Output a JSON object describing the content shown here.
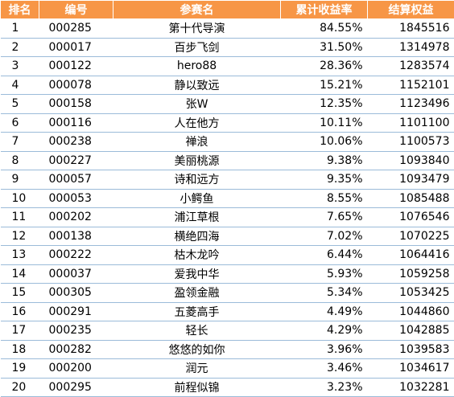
{
  "header": {
    "rank": "排名",
    "id": "编号",
    "name": "参赛名",
    "rate": "累计收益率",
    "equity": "结算权益"
  },
  "colors": {
    "header_bg": "#f79646",
    "header_text": "#ffffff",
    "row_border": "#9bbbd9"
  },
  "rows": [
    {
      "rank": "1",
      "id": "000285",
      "name": "第十代导演",
      "rate": "84.55%",
      "equity": "1845516"
    },
    {
      "rank": "2",
      "id": "000017",
      "name": "百步飞剑",
      "rate": "31.50%",
      "equity": "1314978"
    },
    {
      "rank": "3",
      "id": "000122",
      "name": "hero88",
      "rate": "28.36%",
      "equity": "1283574"
    },
    {
      "rank": "4",
      "id": "000078",
      "name": "静以致远",
      "rate": "15.21%",
      "equity": "1152101"
    },
    {
      "rank": "5",
      "id": "000158",
      "name": "张W",
      "rate": "12.35%",
      "equity": "1123496"
    },
    {
      "rank": "6",
      "id": "000116",
      "name": "人在他方",
      "rate": "10.11%",
      "equity": "1101100"
    },
    {
      "rank": "7",
      "id": "000238",
      "name": "禅浪",
      "rate": "10.06%",
      "equity": "1100573"
    },
    {
      "rank": "8",
      "id": "000227",
      "name": "美丽桃源",
      "rate": "9.38%",
      "equity": "1093840"
    },
    {
      "rank": "9",
      "id": "000057",
      "name": "诗和远方",
      "rate": "9.35%",
      "equity": "1093479"
    },
    {
      "rank": "10",
      "id": "000053",
      "name": "小鳄鱼",
      "rate": "8.55%",
      "equity": "1085488"
    },
    {
      "rank": "11",
      "id": "000202",
      "name": "浦江草根",
      "rate": "7.65%",
      "equity": "1076546"
    },
    {
      "rank": "12",
      "id": "000138",
      "name": "横绝四海",
      "rate": "7.02%",
      "equity": "1070225"
    },
    {
      "rank": "13",
      "id": "000222",
      "name": "枯木龙吟",
      "rate": "6.44%",
      "equity": "1064416"
    },
    {
      "rank": "14",
      "id": "000037",
      "name": "爱我中华",
      "rate": "5.93%",
      "equity": "1059258"
    },
    {
      "rank": "15",
      "id": "000305",
      "name": "盈领金融",
      "rate": "5.34%",
      "equity": "1053425"
    },
    {
      "rank": "16",
      "id": "000291",
      "name": "五菱高手",
      "rate": "4.49%",
      "equity": "1044860"
    },
    {
      "rank": "17",
      "id": "000235",
      "name": "轻长",
      "rate": "4.29%",
      "equity": "1042885"
    },
    {
      "rank": "18",
      "id": "000282",
      "name": "悠悠的如你",
      "rate": "3.96%",
      "equity": "1039583"
    },
    {
      "rank": "19",
      "id": "000200",
      "name": "润元",
      "rate": "3.46%",
      "equity": "1034617"
    },
    {
      "rank": "20",
      "id": "000295",
      "name": "前程似锦",
      "rate": "3.23%",
      "equity": "1032281"
    }
  ]
}
